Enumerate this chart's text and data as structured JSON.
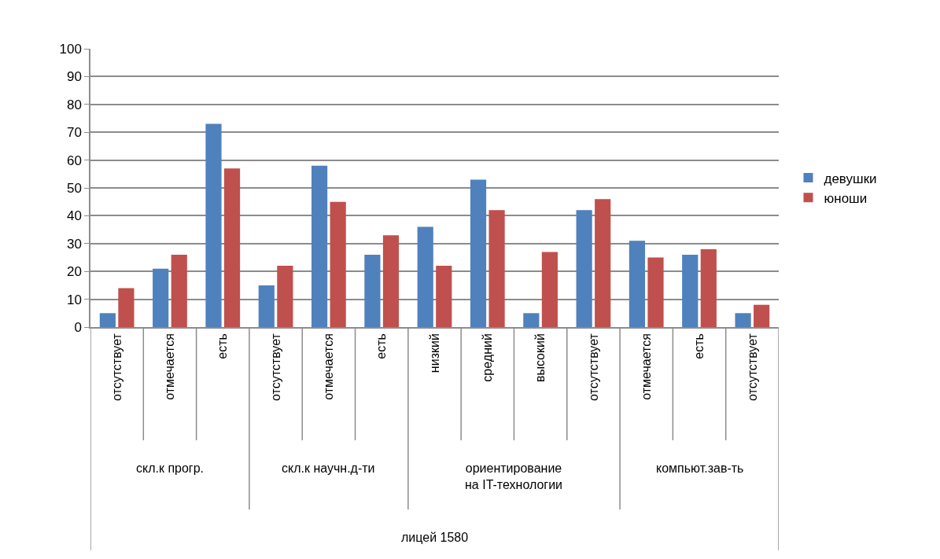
{
  "chart_data": {
    "type": "bar",
    "categories": [
      "отсутствует",
      "отмечается",
      "есть",
      "отсутствует",
      "отмечается",
      "есть",
      "низкий",
      "средний",
      "высокий",
      "отсутствует",
      "отмечается",
      "есть",
      "отсутствует"
    ],
    "annotations": [
      "скл.к прогр.",
      "скл.к научн.д-ти",
      "ориентирование на IT-технологии",
      "компьют.зав-ть",
      "лицей 1580"
    ],
    "series": [
      {
        "name": "девушки",
        "color": "#4f81bd",
        "values": [
          5,
          21,
          73,
          15,
          58,
          26,
          36,
          53,
          5,
          42,
          31,
          26,
          5
        ]
      },
      {
        "name": "юноши",
        "color": "#c0504d",
        "values": [
          14,
          26,
          57,
          22,
          45,
          33,
          22,
          42,
          27,
          46,
          25,
          28,
          8
        ]
      }
    ],
    "ylim": [
      0,
      100
    ],
    "yticks": [
      0,
      10,
      20,
      30,
      40,
      50,
      60,
      70,
      80,
      90,
      100
    ],
    "grid": "y",
    "legend": "right"
  }
}
